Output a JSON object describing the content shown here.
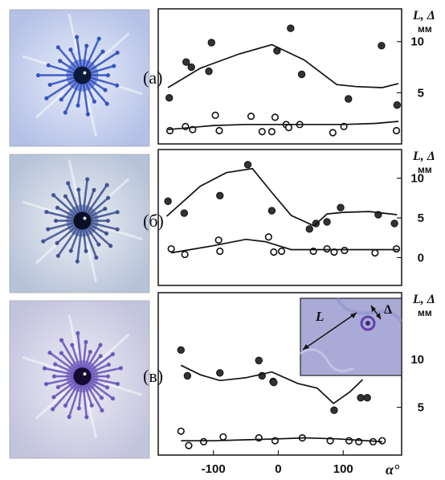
{
  "figure": {
    "photos": [
      {
        "bg": "#c9d2ea",
        "dye": "#2f4fc0",
        "core": "#0b1a3a",
        "spokes": 22
      },
      {
        "bg": "#d4dbe8",
        "dye": "#3b4f8f",
        "core": "#0a0f25",
        "spokes": 26
      },
      {
        "bg": "#dadbe9",
        "dye": "#6a52b8",
        "core": "#140b30",
        "spokes": 30
      }
    ],
    "inset": {
      "L_label": "L",
      "delta_label": "Δ",
      "bg": "#a9abd6",
      "ring": "#5e43a8"
    }
  },
  "chart_data": [
    {
      "type": "scatter",
      "panel_label": "(а)",
      "y_label_line1": "L, Δ",
      "y_unit": "мм",
      "xlim": [
        -185,
        190
      ],
      "ylim": [
        0,
        13.2
      ],
      "y_ticks": [
        5,
        10
      ],
      "show_x_ticks": false,
      "series": [
        {
          "marker": "filled",
          "x": [
            -168,
            -142,
            -134,
            -103,
            -107,
            -2,
            19,
            36,
            108,
            159,
            183
          ],
          "y": [
            4.5,
            8.0,
            7.5,
            9.9,
            7.1,
            9.1,
            11.3,
            6.8,
            4.4,
            9.6,
            3.8
          ]
        },
        {
          "marker": "filled-line",
          "x": [
            -170,
            -120,
            -60,
            -10,
            40,
            90,
            120,
            160,
            185
          ],
          "y": [
            5.5,
            7.4,
            8.8,
            9.7,
            8.2,
            5.8,
            5.6,
            5.5,
            5.9
          ]
        },
        {
          "marker": "open",
          "x": [
            -167,
            -143,
            -132,
            -97,
            -91,
            -42,
            -25,
            -10,
            -5,
            12,
            16,
            33,
            84,
            101,
            182
          ],
          "y": [
            1.3,
            1.7,
            1.4,
            2.8,
            1.3,
            2.7,
            1.2,
            1.2,
            2.6,
            1.9,
            1.6,
            1.9,
            1.1,
            1.7,
            1.3
          ]
        },
        {
          "marker": "open-line",
          "x": [
            -170,
            -100,
            -50,
            0,
            50,
            100,
            150,
            185
          ],
          "y": [
            1.4,
            1.8,
            1.9,
            1.9,
            1.9,
            1.9,
            2.0,
            2.2
          ]
        }
      ]
    },
    {
      "type": "scatter",
      "panel_label": "(б)",
      "y_label_line1": "L, Δ",
      "y_unit": "мм",
      "xlim": [
        -185,
        190
      ],
      "ylim": [
        -3.5,
        13.6
      ],
      "y_ticks": [
        0,
        5,
        10
      ],
      "show_x_ticks": false,
      "series": [
        {
          "marker": "filled",
          "x": [
            -170,
            -145,
            -90,
            -47,
            -10,
            48,
            58,
            75,
            96,
            154,
            179
          ],
          "y": [
            7.1,
            5.6,
            7.8,
            11.7,
            5.9,
            3.6,
            4.3,
            4.5,
            6.3,
            5.4,
            4.3
          ]
        },
        {
          "marker": "filled-line",
          "x": [
            -172,
            -120,
            -80,
            -40,
            -10,
            20,
            55,
            75,
            100,
            140,
            183
          ],
          "y": [
            5.2,
            9.0,
            10.7,
            11.2,
            8.2,
            5.3,
            4.0,
            5.5,
            5.7,
            5.8,
            5.4
          ]
        },
        {
          "marker": "open",
          "x": [
            -165,
            -144,
            -92,
            -90,
            -15,
            -7,
            5,
            54,
            75,
            86,
            102,
            149,
            182
          ],
          "y": [
            1.1,
            0.4,
            2.2,
            0.8,
            2.6,
            0.7,
            0.8,
            0.8,
            1.1,
            0.7,
            0.9,
            0.6,
            1.1
          ]
        },
        {
          "marker": "open-line",
          "x": [
            -165,
            -100,
            -50,
            -20,
            20,
            80,
            120,
            150,
            185
          ],
          "y": [
            0.6,
            1.5,
            2.3,
            2.0,
            1.0,
            1.0,
            1.0,
            1.0,
            1.0
          ]
        }
      ]
    },
    {
      "type": "scatter",
      "panel_label": "(в)",
      "y_label_line1": "L, Δ",
      "y_unit": "мм",
      "xlim": [
        -185,
        190
      ],
      "ylim": [
        0,
        17.0
      ],
      "y_ticks": [
        5,
        10
      ],
      "show_x_ticks": true,
      "x_ticks": [
        -100,
        0,
        100
      ],
      "x_label": "α°",
      "series": [
        {
          "marker": "filled",
          "x": [
            -150,
            -140,
            -90,
            -30,
            -25,
            -8,
            -7,
            86,
            127,
            137
          ],
          "y": [
            11.0,
            8.3,
            8.6,
            9.9,
            8.3,
            7.7,
            7.6,
            4.7,
            6.0,
            6.0
          ]
        },
        {
          "marker": "filled-line",
          "x": [
            -150,
            -120,
            -90,
            -50,
            -10,
            30,
            60,
            85,
            110,
            130
          ],
          "y": [
            9.4,
            8.4,
            7.8,
            8.1,
            8.7,
            7.5,
            7.0,
            5.4,
            6.6,
            7.9
          ]
        },
        {
          "marker": "open",
          "x": [
            -150,
            -138,
            -115,
            -85,
            -30,
            -5,
            37,
            80,
            109,
            124,
            146,
            160
          ],
          "y": [
            2.5,
            1.0,
            1.4,
            1.9,
            1.8,
            1.5,
            1.8,
            1.5,
            1.5,
            1.4,
            1.4,
            1.5
          ]
        },
        {
          "marker": "open-line",
          "x": [
            -150,
            -100,
            -50,
            0,
            40,
            90,
            160
          ],
          "y": [
            1.5,
            1.5,
            1.6,
            1.7,
            1.8,
            1.7,
            1.4
          ]
        }
      ]
    }
  ]
}
